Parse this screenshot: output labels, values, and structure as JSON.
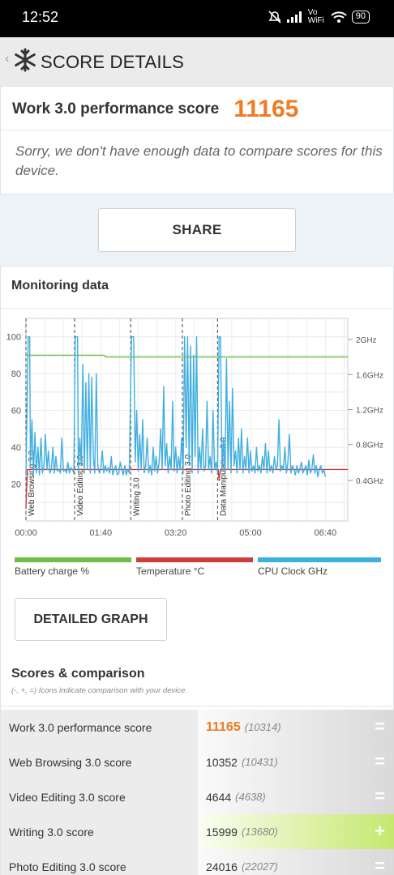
{
  "status_bar": {
    "time": "12:52",
    "network": "Vo WiFi",
    "battery": "90"
  },
  "app_bar": {
    "title": "SCORE DETAILS"
  },
  "score": {
    "label": "Work 3.0 performance score",
    "value": "11165",
    "message": "Sorry, we don't have enough data to compare scores for this device."
  },
  "share_label": "SHARE",
  "monitoring": {
    "title": "Monitoring data",
    "legend": [
      {
        "label": "Battery charge %",
        "color": "#6cbf44"
      },
      {
        "label": "Temperature °C",
        "color": "#cc3d3d"
      },
      {
        "label": "CPU Clock GHz",
        "color": "#3faee0"
      }
    ]
  },
  "chart_data": {
    "type": "line",
    "x_ticks": [
      "00:00",
      "01:40",
      "03:20",
      "05:00",
      "06:40"
    ],
    "x_range_seconds": [
      0,
      430
    ],
    "ylim_left": [
      0,
      110
    ],
    "y_ticks_left": [
      20,
      40,
      60,
      80,
      100
    ],
    "y_ticks_right": [
      "0.4GHz",
      "0.8GHz",
      "1.2GHz",
      "1.6GHz",
      "2GHz"
    ],
    "phases": [
      {
        "label": "Web Browsing 3.0",
        "start_s": 0
      },
      {
        "label": "Video Editing 3.0",
        "start_s": 65
      },
      {
        "label": "Writing 3.0",
        "start_s": 140
      },
      {
        "label": "Photo Editing 3.0",
        "start_s": 209
      },
      {
        "label": "Data Manipulation 3.0",
        "start_s": 256
      }
    ],
    "series": [
      {
        "name": "Battery charge %",
        "color": "#6cbf44",
        "points": [
          [
            0,
            90
          ],
          [
            70,
            90
          ],
          [
            104,
            90
          ],
          [
            107,
            89
          ],
          [
            430,
            89
          ]
        ]
      },
      {
        "name": "Temperature °C",
        "color": "#cc3d3d",
        "points": [
          [
            0,
            7
          ],
          [
            2,
            28
          ],
          [
            257,
            28
          ],
          [
            258,
            22
          ],
          [
            260,
            28
          ],
          [
            430,
            28
          ]
        ]
      },
      {
        "name": "CPU Clock GHz",
        "color": "#3faee0",
        "points": [
          [
            0,
            25
          ],
          [
            3,
            100
          ],
          [
            5,
            100
          ],
          [
            6,
            30
          ],
          [
            8,
            55
          ],
          [
            10,
            25
          ],
          [
            12,
            48
          ],
          [
            14,
            26
          ],
          [
            16,
            40
          ],
          [
            18,
            25
          ],
          [
            20,
            45
          ],
          [
            22,
            26
          ],
          [
            24,
            30
          ],
          [
            26,
            47
          ],
          [
            28,
            28
          ],
          [
            30,
            38
          ],
          [
            32,
            26
          ],
          [
            34,
            28
          ],
          [
            36,
            40
          ],
          [
            38,
            26
          ],
          [
            40,
            35
          ],
          [
            42,
            27
          ],
          [
            44,
            28
          ],
          [
            46,
            26
          ],
          [
            48,
            45
          ],
          [
            50,
            27
          ],
          [
            52,
            28
          ],
          [
            54,
            26
          ],
          [
            56,
            32
          ],
          [
            58,
            26
          ],
          [
            60,
            29
          ],
          [
            62,
            28
          ],
          [
            64,
            26
          ],
          [
            66,
            100
          ],
          [
            69,
            100
          ],
          [
            70,
            26
          ],
          [
            72,
            45
          ],
          [
            74,
            30
          ],
          [
            76,
            85
          ],
          [
            78,
            26
          ],
          [
            80,
            75
          ],
          [
            82,
            28
          ],
          [
            84,
            80
          ],
          [
            86,
            26
          ],
          [
            88,
            78
          ],
          [
            90,
            35
          ],
          [
            92,
            26
          ],
          [
            94,
            80
          ],
          [
            96,
            30
          ],
          [
            98,
            26
          ],
          [
            100,
            28
          ],
          [
            102,
            38
          ],
          [
            104,
            26
          ],
          [
            106,
            30
          ],
          [
            108,
            27
          ],
          [
            110,
            29
          ],
          [
            112,
            26
          ],
          [
            114,
            35
          ],
          [
            116,
            25
          ],
          [
            118,
            28
          ],
          [
            120,
            30
          ],
          [
            122,
            25
          ],
          [
            124,
            26
          ],
          [
            126,
            32
          ],
          [
            128,
            28
          ],
          [
            130,
            25
          ],
          [
            132,
            30
          ],
          [
            134,
            25
          ],
          [
            136,
            28
          ],
          [
            138,
            26
          ],
          [
            141,
            100
          ],
          [
            144,
            100
          ],
          [
            146,
            32
          ],
          [
            148,
            60
          ],
          [
            150,
            27
          ],
          [
            152,
            47
          ],
          [
            154,
            28
          ],
          [
            156,
            55
          ],
          [
            158,
            26
          ],
          [
            160,
            30
          ],
          [
            162,
            45
          ],
          [
            164,
            26
          ],
          [
            166,
            30
          ],
          [
            168,
            25
          ],
          [
            170,
            40
          ],
          [
            172,
            27
          ],
          [
            174,
            35
          ],
          [
            176,
            26
          ],
          [
            178,
            32
          ],
          [
            180,
            50
          ],
          [
            182,
            28
          ],
          [
            184,
            73
          ],
          [
            186,
            30
          ],
          [
            188,
            42
          ],
          [
            190,
            26
          ],
          [
            192,
            35
          ],
          [
            194,
            28
          ],
          [
            196,
            65
          ],
          [
            198,
            27
          ],
          [
            200,
            40
          ],
          [
            202,
            26
          ],
          [
            204,
            35
          ],
          [
            206,
            28
          ],
          [
            208,
            45
          ],
          [
            210,
            26
          ],
          [
            212,
            100
          ],
          [
            214,
            40
          ],
          [
            216,
            100
          ],
          [
            218,
            30
          ],
          [
            220,
            95
          ],
          [
            222,
            26
          ],
          [
            224,
            90
          ],
          [
            226,
            35
          ],
          [
            228,
            100
          ],
          [
            230,
            26
          ],
          [
            232,
            40
          ],
          [
            234,
            28
          ],
          [
            236,
            50
          ],
          [
            238,
            27
          ],
          [
            240,
            30
          ],
          [
            242,
            65
          ],
          [
            244,
            28
          ],
          [
            246,
            35
          ],
          [
            248,
            26
          ],
          [
            250,
            60
          ],
          [
            252,
            28
          ],
          [
            254,
            32
          ],
          [
            256,
            26
          ],
          [
            258,
            100
          ],
          [
            260,
            100
          ],
          [
            262,
            27
          ],
          [
            264,
            45
          ],
          [
            266,
            26
          ],
          [
            268,
            88
          ],
          [
            270,
            28
          ],
          [
            272,
            65
          ],
          [
            274,
            26
          ],
          [
            276,
            72
          ],
          [
            278,
            30
          ],
          [
            280,
            38
          ],
          [
            282,
            26
          ],
          [
            284,
            45
          ],
          [
            286,
            28
          ],
          [
            288,
            50
          ],
          [
            290,
            26
          ],
          [
            292,
            35
          ],
          [
            294,
            28
          ],
          [
            296,
            45
          ],
          [
            298,
            26
          ],
          [
            300,
            38
          ],
          [
            302,
            27
          ],
          [
            304,
            30
          ],
          [
            306,
            26
          ],
          [
            308,
            40
          ],
          [
            310,
            27
          ],
          [
            312,
            30
          ],
          [
            314,
            26
          ],
          [
            316,
            35
          ],
          [
            318,
            28
          ],
          [
            320,
            42
          ],
          [
            322,
            26
          ],
          [
            324,
            38
          ],
          [
            326,
            27
          ],
          [
            328,
            30
          ],
          [
            330,
            26
          ],
          [
            332,
            35
          ],
          [
            334,
            28
          ],
          [
            336,
            30
          ],
          [
            338,
            55
          ],
          [
            340,
            27
          ],
          [
            342,
            30
          ],
          [
            344,
            28
          ],
          [
            346,
            40
          ],
          [
            348,
            26
          ],
          [
            350,
            32
          ],
          [
            352,
            47
          ],
          [
            354,
            26
          ],
          [
            356,
            30
          ],
          [
            358,
            28
          ],
          [
            360,
            25
          ],
          [
            362,
            30
          ],
          [
            364,
            26
          ],
          [
            366,
            28
          ],
          [
            368,
            32
          ],
          [
            370,
            26
          ],
          [
            372,
            28
          ],
          [
            374,
            30
          ],
          [
            376,
            25
          ],
          [
            378,
            33
          ],
          [
            380,
            26
          ],
          [
            382,
            28
          ],
          [
            384,
            36
          ],
          [
            386,
            26
          ],
          [
            388,
            30
          ],
          [
            390,
            24
          ],
          [
            392,
            28
          ],
          [
            394,
            30
          ],
          [
            396,
            26
          ],
          [
            398,
            28
          ],
          [
            400,
            24
          ]
        ]
      }
    ]
  },
  "detailed_graph_label": "DETAILED GRAPH",
  "comparison": {
    "title": "Scores & comparison",
    "note": "(-, +, =) Icons indicate comparison with your device.",
    "rows": [
      {
        "label": "Work 3.0 performance score",
        "score": "11165",
        "compare": "(10314)",
        "indicator": "="
      },
      {
        "label": "Web Browsing 3.0 score",
        "score": "10352",
        "compare": "(10431)",
        "indicator": "="
      },
      {
        "label": "Video Editing 3.0 score",
        "score": "4644",
        "compare": "(4638)",
        "indicator": "="
      },
      {
        "label": "Writing 3.0 score",
        "score": "15999",
        "compare": "(13680)",
        "indicator": "+"
      },
      {
        "label": "Photo Editing 3.0 score",
        "score": "24016",
        "compare": "(22027)",
        "indicator": "="
      }
    ]
  }
}
